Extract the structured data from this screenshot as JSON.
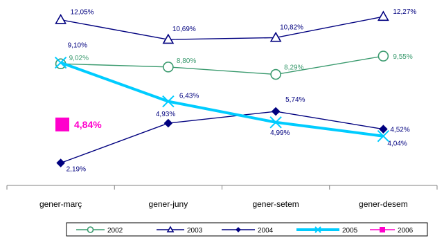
{
  "chart_data": {
    "type": "line",
    "title": "",
    "xlabel": "",
    "ylabel": "",
    "categories": [
      "gener-març",
      "gener-juny",
      "gener-setem",
      "gener-desem"
    ],
    "ylim": [
      0,
      14
    ],
    "grid": false,
    "legend_placement": "bottom",
    "series": [
      {
        "name": "2002",
        "color": "#3a9a6e",
        "marker": "circle-open",
        "values": [
          9.02,
          8.8,
          8.29,
          9.55
        ],
        "labels": [
          "9,02%",
          "8,80%",
          "8,29%",
          "9,55%"
        ]
      },
      {
        "name": "2003",
        "color": "#00007f",
        "marker": "triangle-open",
        "values": [
          12.05,
          10.69,
          10.82,
          12.27
        ],
        "labels": [
          "12,05%",
          "10,69%",
          "10,82%",
          "12,27%"
        ]
      },
      {
        "name": "2004",
        "color": "#00007f",
        "marker": "diamond-filled",
        "values": [
          2.19,
          4.93,
          5.74,
          4.52
        ],
        "labels": [
          "2,19%",
          "4,93%",
          "5,74%",
          "4,52%"
        ]
      },
      {
        "name": "2005",
        "color": "#00ccff",
        "marker": "x",
        "values": [
          9.1,
          6.43,
          4.99,
          4.04
        ],
        "labels": [
          "9,10%",
          "6,43%",
          "4,99%",
          "4,04%"
        ]
      },
      {
        "name": "2006",
        "color": "#ff00cc",
        "marker": "square-filled",
        "values": [
          4.84,
          null,
          null,
          null
        ],
        "labels": [
          "4,84%",
          "",
          "",
          ""
        ]
      }
    ]
  }
}
